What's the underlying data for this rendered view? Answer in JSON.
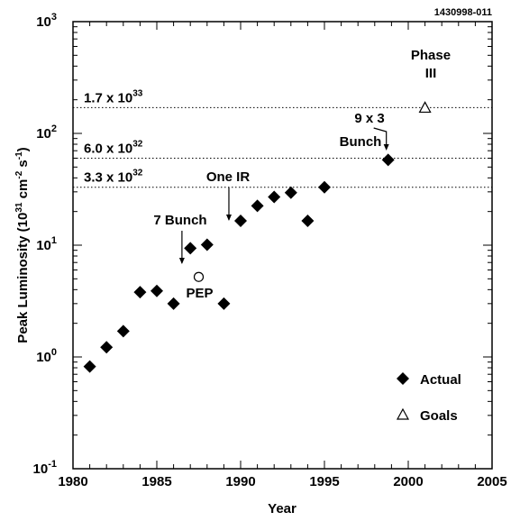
{
  "chart_data": {
    "type": "scatter",
    "figure_id": "1430998-011",
    "xlabel": "Year",
    "ylabel": "Peak Luminosity (10^31 cm^-2 s^-1)",
    "xlim": [
      1980,
      2005
    ],
    "ylim": [
      0.1,
      1000
    ],
    "yscale": "log",
    "x_ticks": [
      1980,
      1985,
      1990,
      1995,
      2000,
      2005
    ],
    "y_ticks": [
      0.1,
      1,
      10,
      100,
      1000
    ],
    "series": [
      {
        "name": "Actual",
        "marker": "filled-diamond",
        "points": [
          {
            "x": 1981,
            "y": 0.82
          },
          {
            "x": 1982,
            "y": 1.22
          },
          {
            "x": 1983,
            "y": 1.7
          },
          {
            "x": 1984,
            "y": 3.8
          },
          {
            "x": 1985,
            "y": 3.9
          },
          {
            "x": 1986,
            "y": 3.0
          },
          {
            "x": 1987,
            "y": 9.4
          },
          {
            "x": 1988,
            "y": 10.1
          },
          {
            "x": 1989,
            "y": 3.0
          },
          {
            "x": 1990,
            "y": 16.5
          },
          {
            "x": 1991,
            "y": 22.5
          },
          {
            "x": 1992,
            "y": 27
          },
          {
            "x": 1993,
            "y": 29.5
          },
          {
            "x": 1994,
            "y": 16.5
          },
          {
            "x": 1995,
            "y": 33
          },
          {
            "x": 1998.8,
            "y": 58
          }
        ]
      },
      {
        "name": "Goals",
        "marker": "open-triangle",
        "points": [
          {
            "x": 2001,
            "y": 170
          }
        ]
      }
    ],
    "extra_points": [
      {
        "label": "PEP",
        "marker": "open-circle",
        "x": 1987.5,
        "y": 5.2
      }
    ],
    "reference_lines": [
      {
        "y": 170,
        "mantissa": "1.7 x 10",
        "exponent": "33"
      },
      {
        "y": 60,
        "mantissa": "6.0 x 10",
        "exponent": "32"
      },
      {
        "y": 33,
        "mantissa": "3.3 x 10",
        "exponent": "32"
      }
    ],
    "annotations": [
      {
        "lines": [
          "Phase",
          "III"
        ]
      },
      {
        "lines": [
          "9 x 3",
          "Bunch"
        ],
        "arrow_to": {
          "x": 1998.8,
          "y": 58
        }
      },
      {
        "lines": [
          "One  IR"
        ],
        "arrow_to": {
          "x": 1989.3,
          "y": 16
        }
      },
      {
        "lines": [
          "7  Bunch"
        ],
        "arrow_to": {
          "x": 1986.5,
          "y": 7.5
        }
      }
    ],
    "legend": {
      "position": "bottom-right",
      "entries": [
        {
          "label": "Actual",
          "marker": "filled-diamond"
        },
        {
          "label": "Goals",
          "marker": "open-triangle"
        }
      ]
    }
  }
}
